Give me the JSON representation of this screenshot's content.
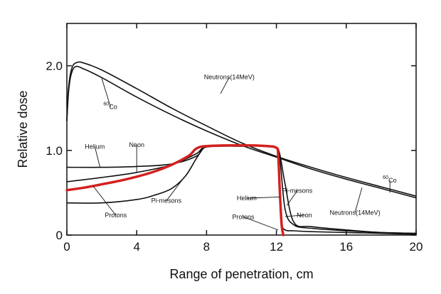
{
  "chart_data": {
    "type": "line",
    "xlabel": "Range of penetration, cm",
    "ylabel": "Relative dose",
    "xlim": [
      0,
      20
    ],
    "ylim": [
      0,
      2.5
    ],
    "xticks": [
      0,
      4,
      8,
      12,
      16,
      20
    ],
    "xtick_labels": [
      "0",
      "4",
      "8",
      "12",
      "16",
      "20"
    ],
    "yticks": [
      0,
      1.0,
      2.0
    ],
    "ytick_labels": [
      "0",
      "1.0",
      "2.0"
    ],
    "grid": false,
    "series": [
      {
        "key": "co60",
        "color": "#111111",
        "x": [
          0,
          0.1,
          0.25,
          0.5,
          1,
          2,
          4,
          6,
          8,
          10,
          12,
          14,
          16,
          18,
          20
        ],
        "y": [
          1.35,
          1.7,
          1.9,
          1.99,
          1.96,
          1.86,
          1.63,
          1.42,
          1.23,
          1.06,
          0.92,
          0.78,
          0.66,
          0.55,
          0.44
        ]
      },
      {
        "key": "neutrons",
        "color": "#111111",
        "x": [
          0,
          0.1,
          0.3,
          0.6,
          1,
          2,
          4,
          6,
          8,
          10,
          12,
          14,
          16,
          18,
          20
        ],
        "y": [
          1.35,
          1.75,
          1.98,
          2.04,
          2.03,
          1.95,
          1.73,
          1.5,
          1.29,
          1.09,
          0.93,
          0.8,
          0.68,
          0.57,
          0.46
        ]
      },
      {
        "key": "helium",
        "color": "#111111",
        "x": [
          0,
          2,
          4,
          6,
          7.4,
          8,
          10,
          11.5,
          12,
          12.1,
          12.2,
          12.3,
          12.5,
          13,
          14,
          16,
          18,
          20
        ],
        "y": [
          0.8,
          0.8,
          0.81,
          0.84,
          0.93,
          1.04,
          1.05,
          1.05,
          1.03,
          0.95,
          0.55,
          0.15,
          0.06,
          0.05,
          0.04,
          0.03,
          0.02,
          0.01
        ]
      },
      {
        "key": "neon",
        "color": "#111111",
        "x": [
          0,
          2,
          4,
          6,
          7.4,
          8,
          10,
          11.5,
          12,
          12.2,
          12.5,
          13,
          14,
          16,
          18,
          20
        ],
        "y": [
          0.63,
          0.68,
          0.74,
          0.83,
          0.96,
          1.04,
          1.05,
          1.05,
          1.03,
          0.9,
          0.3,
          0.12,
          0.08,
          0.05,
          0.03,
          0.02
        ]
      },
      {
        "key": "pimesons",
        "color": "#111111",
        "x": [
          0,
          2,
          4,
          5,
          6,
          6.8,
          7.4,
          7.8,
          8,
          10,
          11.5,
          12,
          12.2,
          12.5,
          13,
          14,
          16,
          18,
          20
        ],
        "y": [
          0.38,
          0.38,
          0.42,
          0.47,
          0.55,
          0.7,
          0.9,
          1.02,
          1.05,
          1.05,
          1.05,
          1.03,
          0.95,
          0.6,
          0.15,
          0.1,
          0.06,
          0.03,
          0.02
        ]
      },
      {
        "key": "protons",
        "color": "#d42020",
        "width": 3.5,
        "x": [
          0,
          1,
          2,
          3,
          4,
          5,
          6,
          7,
          7.4,
          8,
          10,
          11.5,
          12,
          12.1,
          12.2,
          12.3,
          12.4
        ],
        "y": [
          0.53,
          0.56,
          0.6,
          0.64,
          0.69,
          0.75,
          0.83,
          0.94,
          1.02,
          1.05,
          1.06,
          1.05,
          1.03,
          0.95,
          0.5,
          0.12,
          0.0
        ]
      }
    ],
    "annotations": [
      {
        "text": "Neutrons(14MeV)",
        "x": 9.3,
        "y": 1.84,
        "lx": 8.8,
        "ly": 1.67
      },
      {
        "text": "Co",
        "sup": "60",
        "x": 2.5,
        "y": 1.49,
        "lx": 2.0,
        "ly": 1.85
      },
      {
        "text": "Helium",
        "x": 1.6,
        "y": 1.02,
        "lx": 1.9,
        "ly": 0.8
      },
      {
        "text": "Neon",
        "x": 4.0,
        "y": 1.04,
        "lx": 4.0,
        "ly": 0.74
      },
      {
        "text": "Protons",
        "x": 2.8,
        "y": 0.21,
        "lx": 1.5,
        "ly": 0.58
      },
      {
        "text": "Pi-mesons",
        "x": 5.7,
        "y": 0.38,
        "lx": 6.6,
        "ly": 0.65
      },
      {
        "text": "Helium",
        "x": 10.3,
        "y": 0.41,
        "lx": 12.2,
        "ly": 0.45
      },
      {
        "text": "Pi-mesons",
        "x": 13.2,
        "y": 0.5,
        "lx": 12.6,
        "ly": 0.35
      },
      {
        "text": "Neon",
        "x": 13.6,
        "y": 0.21,
        "lx": 12.5,
        "ly": 0.22
      },
      {
        "text": "Protons",
        "x": 10.1,
        "y": 0.19,
        "lx": 12.1,
        "ly": 0.06
      },
      {
        "text": "Neutrons(14MeV)",
        "x": 16.5,
        "y": 0.24,
        "lx": 16.9,
        "ly": 0.56
      },
      {
        "text": "Co",
        "sup": "60",
        "x": 18.5,
        "y": 0.62,
        "lx": 18.5,
        "ly": 0.5
      }
    ]
  }
}
